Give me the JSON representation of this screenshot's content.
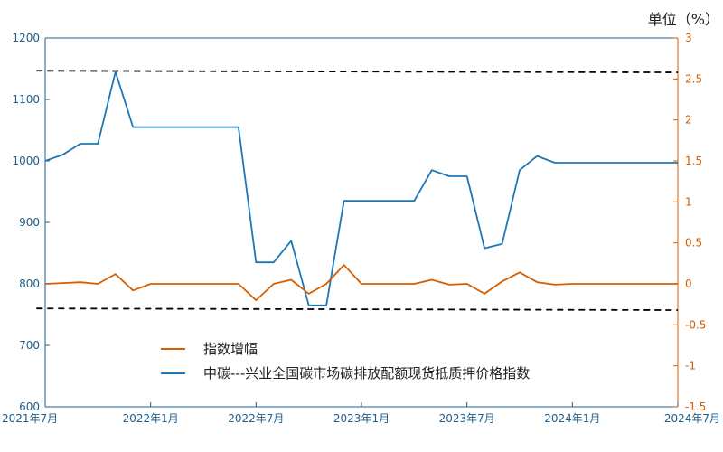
{
  "chart_data": {
    "type": "line",
    "unit_label": "单位（%）",
    "colors": {
      "index": "#1f77b4",
      "change": "#d55e00",
      "ref": "#000000"
    },
    "y_left": {
      "min": 600,
      "max": 1200,
      "ticks": [
        600,
        700,
        800,
        900,
        1000,
        1100,
        1200
      ]
    },
    "y_right": {
      "min": -1.5,
      "max": 3,
      "ticks": [
        -1.5,
        -1,
        -0.5,
        0,
        0.5,
        1,
        1.5,
        2,
        2.5,
        3
      ]
    },
    "x_ticks": [
      {
        "label": "2021年7月",
        "x": 0
      },
      {
        "label": "2022年1月",
        "x": 6
      },
      {
        "label": "2022年7月",
        "x": 12
      },
      {
        "label": "2023年1月",
        "x": 18
      },
      {
        "label": "2023年7月",
        "x": 24
      },
      {
        "label": "2024年1月",
        "x": 30
      },
      {
        "label": "2024年7月",
        "x": 36
      }
    ],
    "x_range": [
      0,
      36
    ],
    "legend": [
      "指数增幅",
      "中碳---兴业全国碳市场碳排放配额现货抵质押价格指数"
    ],
    "series": [
      {
        "name": "中碳---兴业全国碳市场碳排放配额现货抵质押价格指数",
        "axis": "left",
        "points": [
          [
            0,
            1000
          ],
          [
            1,
            1010
          ],
          [
            2,
            1028
          ],
          [
            3,
            1028
          ],
          [
            4,
            1145
          ],
          [
            5,
            1055
          ],
          [
            6,
            1055
          ],
          [
            7,
            1055
          ],
          [
            8,
            1055
          ],
          [
            9,
            1055
          ],
          [
            10,
            1055
          ],
          [
            11,
            1055
          ],
          [
            12,
            835
          ],
          [
            13,
            835
          ],
          [
            14,
            870
          ],
          [
            15,
            765
          ],
          [
            16,
            765
          ],
          [
            17,
            935
          ],
          [
            18,
            935
          ],
          [
            19,
            935
          ],
          [
            20,
            935
          ],
          [
            21,
            935
          ],
          [
            22,
            985
          ],
          [
            23,
            975
          ],
          [
            24,
            975
          ],
          [
            25,
            858
          ],
          [
            26,
            865
          ],
          [
            27,
            985
          ],
          [
            28,
            1008
          ],
          [
            29,
            997
          ],
          [
            30,
            997
          ],
          [
            31,
            997
          ],
          [
            32,
            997
          ],
          [
            33,
            997
          ],
          [
            34,
            997
          ],
          [
            35,
            997
          ],
          [
            36,
            997
          ]
        ]
      },
      {
        "name": "指数增幅",
        "axis": "right",
        "points": [
          [
            0,
            0.0
          ],
          [
            1,
            0.01
          ],
          [
            2,
            0.02
          ],
          [
            3,
            0.0
          ],
          [
            4,
            0.12
          ],
          [
            5,
            -0.08
          ],
          [
            6,
            0.0
          ],
          [
            7,
            0.0
          ],
          [
            8,
            0.0
          ],
          [
            9,
            0.0
          ],
          [
            10,
            0.0
          ],
          [
            11,
            0.0
          ],
          [
            12,
            -0.2
          ],
          [
            13,
            0.0
          ],
          [
            14,
            0.05
          ],
          [
            15,
            -0.12
          ],
          [
            16,
            0.0
          ],
          [
            17,
            0.23
          ],
          [
            18,
            0.0
          ],
          [
            19,
            0.0
          ],
          [
            20,
            0.0
          ],
          [
            21,
            0.0
          ],
          [
            22,
            0.05
          ],
          [
            23,
            -0.01
          ],
          [
            24,
            0.0
          ],
          [
            25,
            -0.12
          ],
          [
            26,
            0.03
          ],
          [
            27,
            0.14
          ],
          [
            28,
            0.02
          ],
          [
            29,
            -0.01
          ],
          [
            30,
            0.0
          ],
          [
            31,
            0.0
          ],
          [
            32,
            0.0
          ],
          [
            33,
            0.0
          ],
          [
            34,
            0.0
          ],
          [
            35,
            0.0
          ],
          [
            36,
            0.0
          ]
        ]
      }
    ],
    "reference_lines": [
      {
        "axis": "right",
        "from": [
          -0.5,
          2.6
        ],
        "to": [
          36,
          2.58
        ]
      },
      {
        "axis": "right",
        "from": [
          -0.5,
          -0.3
        ],
        "to": [
          36,
          -0.32
        ]
      }
    ]
  }
}
